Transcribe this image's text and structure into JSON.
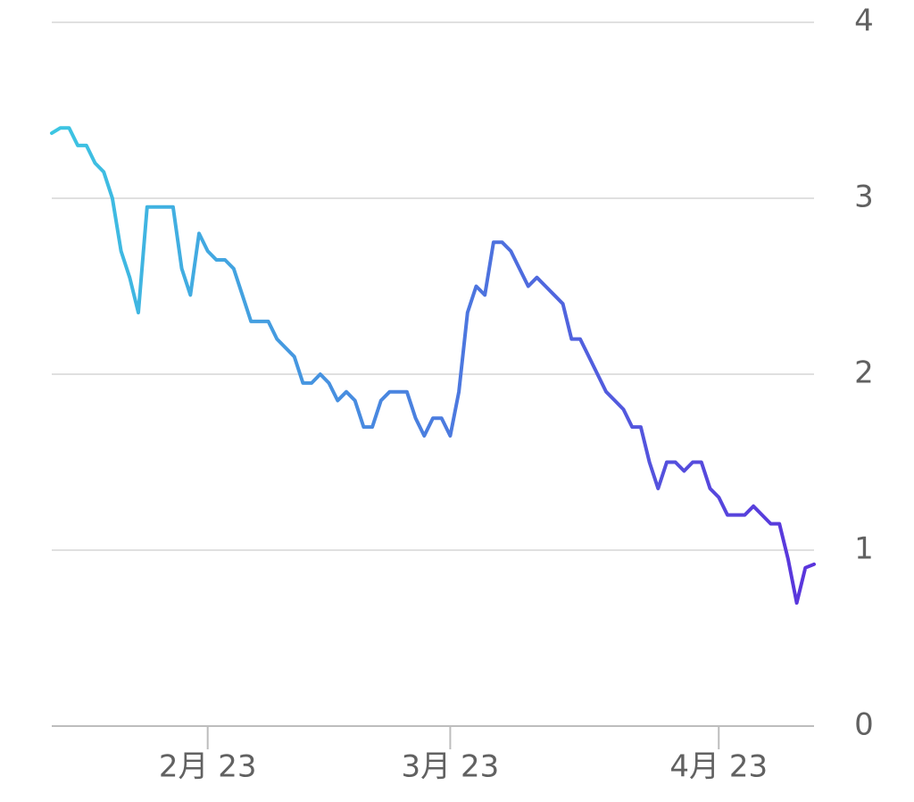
{
  "chart_data": {
    "type": "line",
    "categories": [
      null,
      null,
      null,
      null,
      null,
      null,
      null,
      null,
      null,
      null,
      null,
      null,
      null,
      null,
      null,
      null,
      null,
      null,
      "2月 23",
      null,
      null,
      null,
      null,
      null,
      null,
      null,
      null,
      null,
      null,
      null,
      null,
      null,
      null,
      null,
      null,
      null,
      null,
      null,
      null,
      null,
      null,
      null,
      null,
      null,
      null,
      null,
      "3月 23",
      null,
      null,
      null,
      null,
      null,
      null,
      null,
      null,
      null,
      null,
      null,
      null,
      null,
      null,
      null,
      null,
      null,
      null,
      null,
      null,
      null,
      null,
      null,
      null,
      null,
      null,
      null,
      null,
      null,
      null,
      "4月 23",
      null,
      null,
      null,
      null,
      null,
      null,
      null,
      null,
      null,
      null,
      null
    ],
    "values": [
      3.37,
      3.4,
      3.4,
      3.3,
      3.3,
      3.2,
      3.15,
      3.0,
      2.7,
      2.55,
      2.35,
      2.95,
      2.95,
      2.95,
      2.95,
      2.6,
      2.45,
      2.8,
      2.7,
      2.65,
      2.65,
      2.6,
      2.45,
      2.3,
      2.3,
      2.3,
      2.2,
      2.15,
      2.1,
      1.95,
      1.95,
      2.0,
      1.95,
      1.85,
      1.9,
      1.85,
      1.7,
      1.7,
      1.85,
      1.9,
      1.9,
      1.9,
      1.75,
      1.65,
      1.75,
      1.75,
      1.65,
      1.9,
      2.35,
      2.5,
      2.45,
      2.75,
      2.75,
      2.7,
      2.6,
      2.5,
      2.55,
      2.5,
      2.45,
      2.4,
      2.2,
      2.2,
      2.1,
      2.0,
      1.9,
      1.85,
      1.8,
      1.7,
      1.7,
      1.5,
      1.35,
      1.5,
      1.5,
      1.45,
      1.5,
      1.5,
      1.35,
      1.3,
      1.2,
      1.2,
      1.2,
      1.25,
      1.2,
      1.15,
      1.15,
      0.95,
      0.7,
      0.9,
      0.92
    ],
    "colors": [
      "#3cc6e2",
      "#5a34dc"
    ],
    "ylim": [
      0,
      4
    ],
    "yticks": [
      0,
      1,
      2,
      3,
      4
    ],
    "grid": true,
    "y_axis_side": "right"
  }
}
